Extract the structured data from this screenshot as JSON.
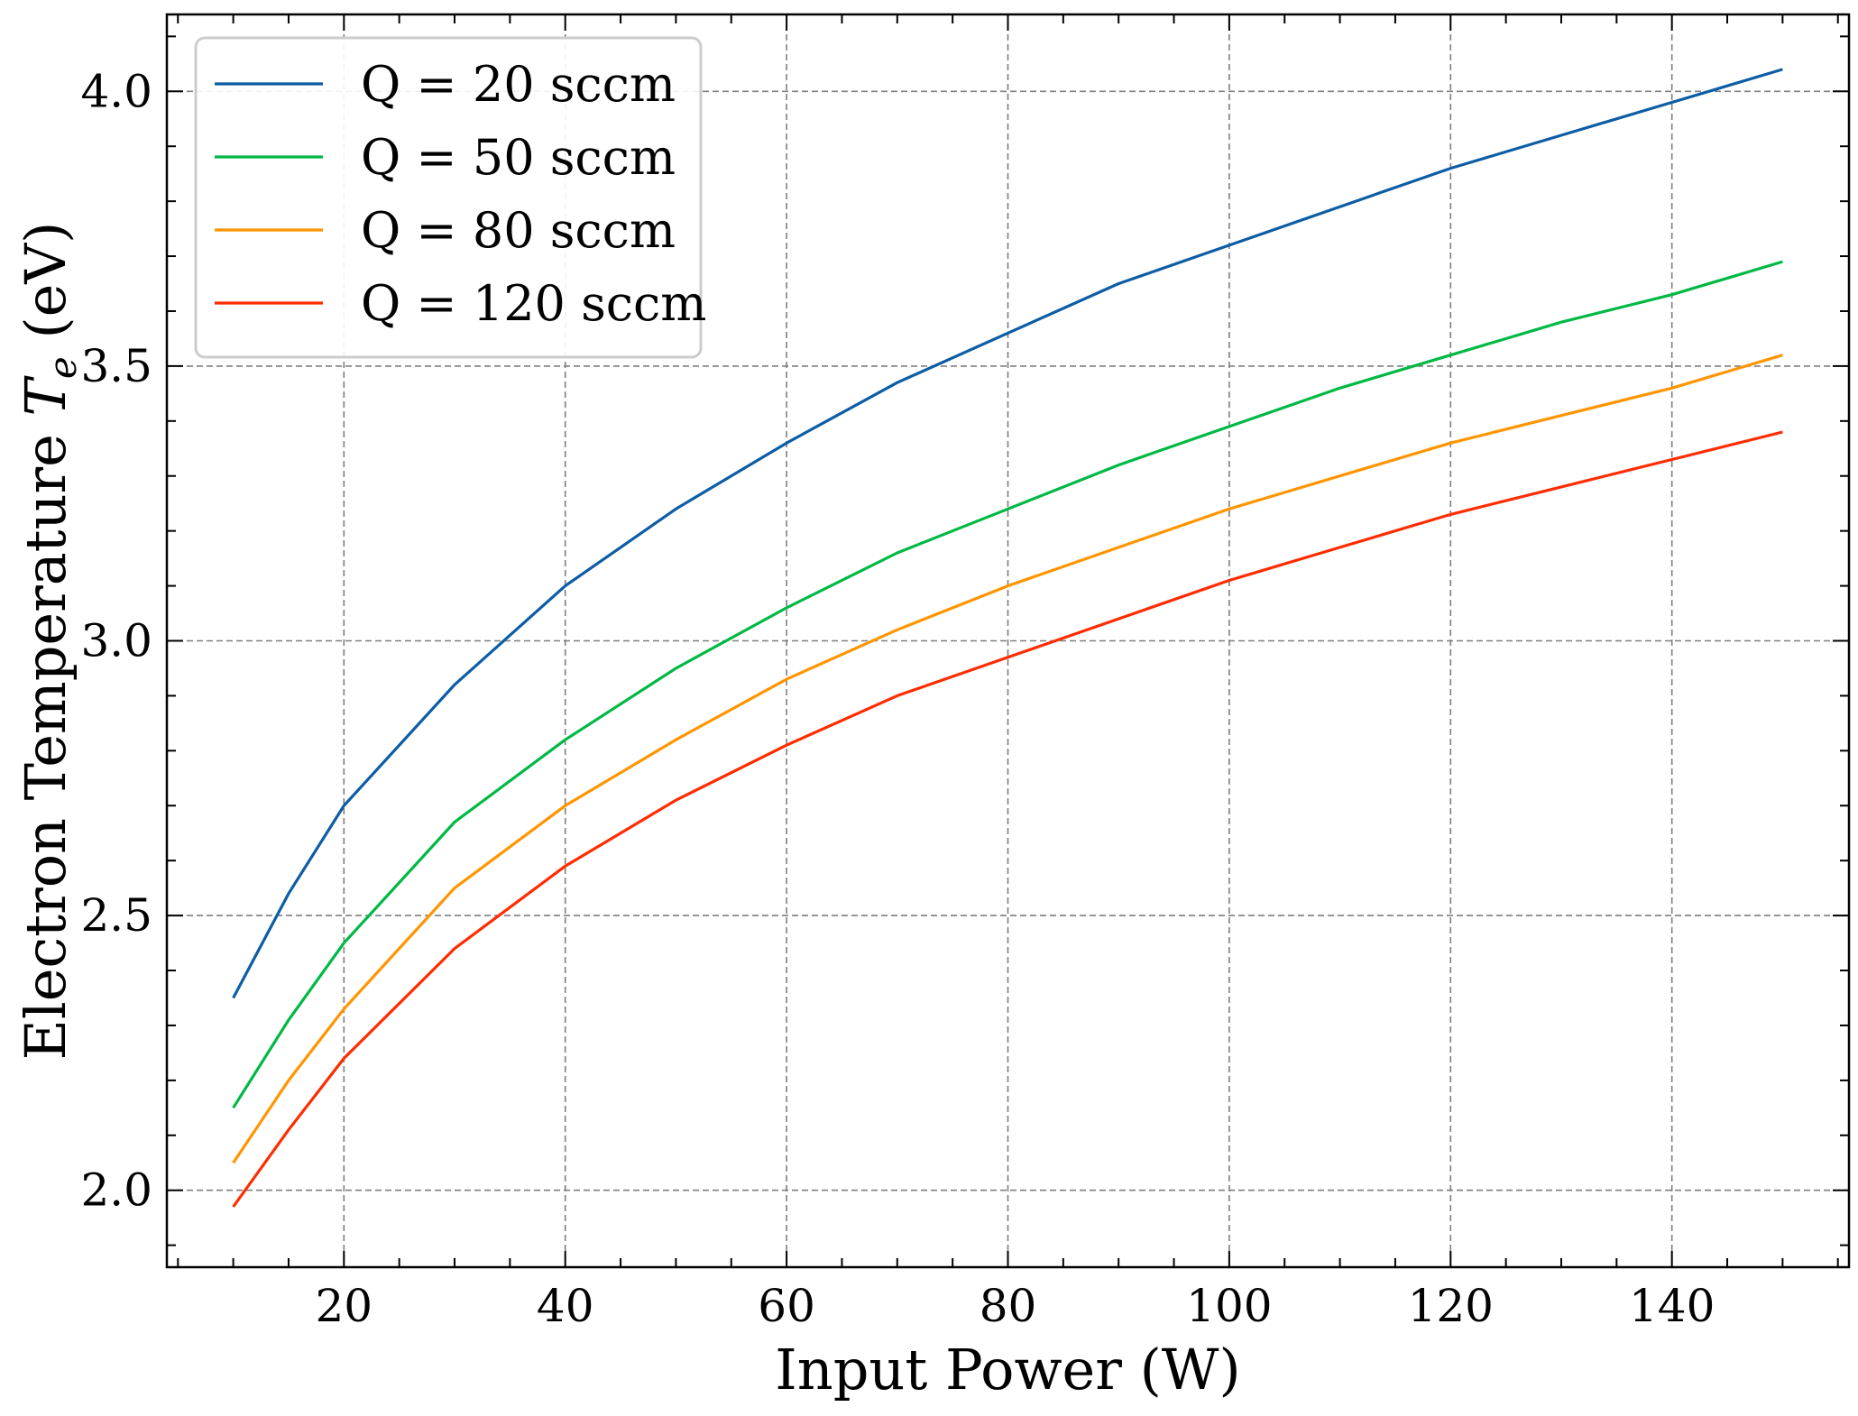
{
  "chart_data": {
    "type": "line",
    "xlabel": "Input Power (W)",
    "ylabel_prefix": "Electron Temperature ",
    "ylabel_symbol": "T",
    "ylabel_subscript": "e",
    "ylabel_suffix": " (eV)",
    "xlim": [
      4,
      156
    ],
    "ylim": [
      1.86,
      4.14
    ],
    "xticks": [
      20,
      40,
      60,
      80,
      100,
      120,
      140
    ],
    "xtick_labels": [
      "20",
      "40",
      "60",
      "80",
      "100",
      "120",
      "140"
    ],
    "yticks": [
      2.0,
      2.5,
      3.0,
      3.5,
      4.0
    ],
    "ytick_labels": [
      "2.0",
      "2.5",
      "3.0",
      "3.5",
      "4.0"
    ],
    "x_minor_step": 5,
    "y_minor_step": 0.1,
    "grid": true,
    "legend_position": "top-left",
    "x": [
      10,
      15,
      20,
      30,
      40,
      50,
      60,
      70,
      80,
      90,
      100,
      110,
      120,
      130,
      140,
      150
    ],
    "series": [
      {
        "name": "Q = 20 sccm",
        "color": "#0C5DA5",
        "values": [
          2.35,
          2.54,
          2.7,
          2.92,
          3.1,
          3.24,
          3.36,
          3.47,
          3.56,
          3.65,
          3.72,
          3.79,
          3.86,
          3.92,
          3.98,
          4.04
        ]
      },
      {
        "name": "Q = 50 sccm",
        "color": "#00B945",
        "values": [
          2.15,
          2.31,
          2.45,
          2.67,
          2.82,
          2.95,
          3.06,
          3.16,
          3.24,
          3.32,
          3.39,
          3.46,
          3.52,
          3.58,
          3.63,
          3.69
        ]
      },
      {
        "name": "Q = 80 sccm",
        "color": "#FF9500",
        "values": [
          2.05,
          2.2,
          2.33,
          2.55,
          2.7,
          2.82,
          2.93,
          3.02,
          3.1,
          3.17,
          3.24,
          3.3,
          3.36,
          3.41,
          3.46,
          3.52
        ]
      },
      {
        "name": "Q = 120 sccm",
        "color": "#FF2C00",
        "values": [
          1.97,
          2.11,
          2.24,
          2.44,
          2.59,
          2.71,
          2.81,
          2.9,
          2.97,
          3.04,
          3.11,
          3.17,
          3.23,
          3.28,
          3.33,
          3.38
        ]
      }
    ]
  }
}
